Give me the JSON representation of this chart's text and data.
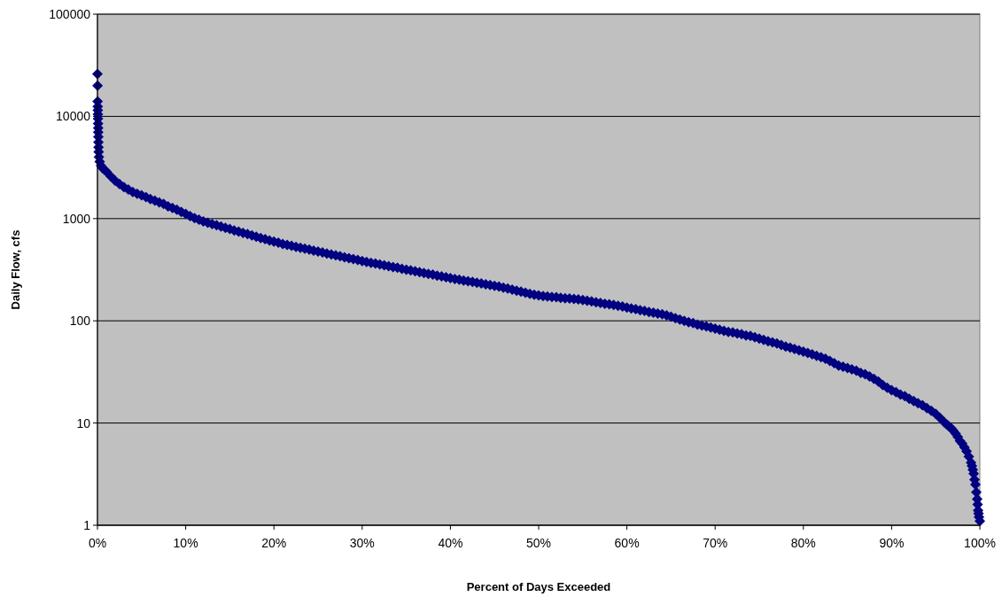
{
  "chart_data": {
    "type": "scatter",
    "xlabel": "Percent of Days Exceeded",
    "ylabel": "Daily Flow, cfs",
    "log": "y",
    "grid": "y",
    "marker": "diamond",
    "xlim": [
      0,
      100
    ],
    "xticks": [
      {
        "value": 0,
        "label": "0%"
      },
      {
        "value": 10,
        "label": "10%"
      },
      {
        "value": 20,
        "label": "20%"
      },
      {
        "value": 30,
        "label": "30%"
      },
      {
        "value": 40,
        "label": "40%"
      },
      {
        "value": 50,
        "label": "50%"
      },
      {
        "value": 60,
        "label": "60%"
      },
      {
        "value": 70,
        "label": "70%"
      },
      {
        "value": 80,
        "label": "80%"
      },
      {
        "value": 90,
        "label": "90%"
      },
      {
        "value": 100,
        "label": "100%"
      }
    ],
    "ylim": [
      1,
      100000
    ],
    "yticks": [
      1,
      10,
      100,
      1000,
      10000,
      100000
    ],
    "series": [
      {
        "color": "#000080",
        "x": [
          0,
          0.01,
          0.02,
          0.03,
          0.04,
          0.05,
          0.06,
          0.07,
          0.08,
          0.09,
          0.1,
          0.11,
          0.12,
          0.14,
          0.17,
          0.25,
          0.4,
          0.6,
          0.8,
          1,
          1.5,
          2,
          2.5,
          3,
          3.5,
          4,
          4.5,
          5,
          5.5,
          6,
          6.5,
          7,
          7.5,
          8,
          8.5,
          9,
          9.5,
          10,
          10.5,
          11,
          11.5,
          12,
          12.5,
          13,
          13.5,
          14,
          14.5,
          15,
          15.5,
          16,
          16.5,
          17,
          17.5,
          18,
          18.5,
          19,
          19.5,
          20,
          20.5,
          21,
          21.5,
          22,
          22.5,
          23,
          23.5,
          24,
          24.5,
          25,
          25.5,
          26,
          26.5,
          27,
          27.5,
          28,
          28.5,
          29,
          29.5,
          30,
          30.5,
          31,
          31.5,
          32,
          32.5,
          33,
          33.5,
          34,
          34.5,
          35,
          35.5,
          36,
          36.5,
          37,
          37.5,
          38,
          38.5,
          39,
          39.5,
          40,
          40.5,
          41,
          41.5,
          42,
          42.5,
          43,
          43.5,
          44,
          44.5,
          45,
          45.5,
          46,
          46.5,
          47,
          47.5,
          48,
          48.5,
          49,
          49.5,
          50,
          50.5,
          51,
          51.5,
          52,
          52.5,
          53,
          53.5,
          54,
          54.5,
          55,
          55.5,
          56,
          56.5,
          57,
          57.5,
          58,
          58.5,
          59,
          59.5,
          60,
          60.5,
          61,
          61.5,
          62,
          62.5,
          63,
          63.5,
          64,
          64.5,
          65,
          65.5,
          66,
          66.5,
          67,
          67.5,
          68,
          68.5,
          69,
          69.5,
          70,
          70.5,
          71,
          71.5,
          72,
          72.5,
          73,
          73.5,
          74,
          74.5,
          75,
          75.5,
          76,
          76.5,
          77,
          77.5,
          78,
          78.5,
          79,
          79.5,
          80,
          80.5,
          81,
          81.5,
          82,
          82.5,
          83,
          83.5,
          84,
          84.5,
          85,
          85.5,
          86,
          86.5,
          87,
          87.5,
          88,
          88.5,
          89,
          89.5,
          90,
          90.5,
          91,
          91.5,
          92,
          92.5,
          93,
          93.5,
          94,
          94.5,
          95,
          95.5,
          96,
          96.25,
          96.5,
          96.75,
          97,
          97.25,
          97.5,
          97.75,
          98,
          98.25,
          98.5,
          98.75,
          99,
          99.1,
          99.2,
          99.3,
          99.4,
          99.5,
          99.6,
          99.7,
          99.75,
          99.8,
          99.85,
          99.9,
          100
        ],
        "values": [
          26000,
          20000,
          14000,
          12500,
          11500,
          10500,
          9500,
          8500,
          7700,
          7000,
          6300,
          5600,
          5000,
          4500,
          4000,
          3600,
          3300,
          3100,
          3000,
          2900,
          2600,
          2350,
          2180,
          2030,
          1920,
          1820,
          1750,
          1690,
          1620,
          1550,
          1500,
          1440,
          1390,
          1320,
          1270,
          1220,
          1160,
          1110,
          1060,
          1010,
          975,
          940,
          910,
          885,
          860,
          835,
          810,
          790,
          765,
          745,
          725,
          705,
          685,
          665,
          645,
          628,
          611,
          595,
          580,
          565,
          553,
          541,
          529,
          518,
          507,
          497,
          486,
          476,
          466,
          456,
          446,
          437,
          428,
          419,
          410,
          401,
          393,
          385,
          377,
          370,
          363,
          356,
          349,
          343,
          336,
          330,
          323,
          317,
          311,
          305,
          299,
          294,
          288,
          283,
          277,
          272,
          267,
          262,
          257,
          253,
          248,
          244,
          240,
          236,
          232,
          228,
          224,
          220,
          216,
          211,
          207,
          202,
          197,
          193,
          188,
          184,
          180,
          177,
          175,
          173,
          171,
          170,
          168,
          166,
          165,
          164,
          162,
          160,
          157,
          155,
          152,
          150,
          147,
          145,
          143,
          140,
          138,
          135,
          132,
          130,
          127,
          125,
          122,
          120,
          118,
          116,
          113,
          110,
          106,
          103,
          100,
          97,
          95,
          92,
          90,
          88,
          86,
          84,
          82,
          80,
          78,
          77,
          75,
          74,
          72,
          71,
          69,
          67,
          65,
          63,
          61.5,
          60,
          58,
          56,
          54.5,
          53,
          51.5,
          50,
          48.5,
          47,
          45.5,
          44,
          42.5,
          40.5,
          38.5,
          36.5,
          35.5,
          34.5,
          33.5,
          32.5,
          31,
          30,
          28.5,
          27,
          25.5,
          23.5,
          22.2,
          21,
          20,
          19,
          18.3,
          17.3,
          16.4,
          15.6,
          14.9,
          14,
          13.2,
          12.3,
          11.2,
          10.1,
          9.7,
          9.3,
          8.9,
          8.4,
          7.9,
          7.3,
          6.7,
          6.3,
          5.8,
          5.3,
          4.7,
          4.1,
          3.8,
          3.5,
          3.2,
          2.8,
          2.5,
          2.1,
          1.8,
          1.6,
          1.4,
          1.3,
          1.2,
          1.1
        ]
      }
    ]
  }
}
